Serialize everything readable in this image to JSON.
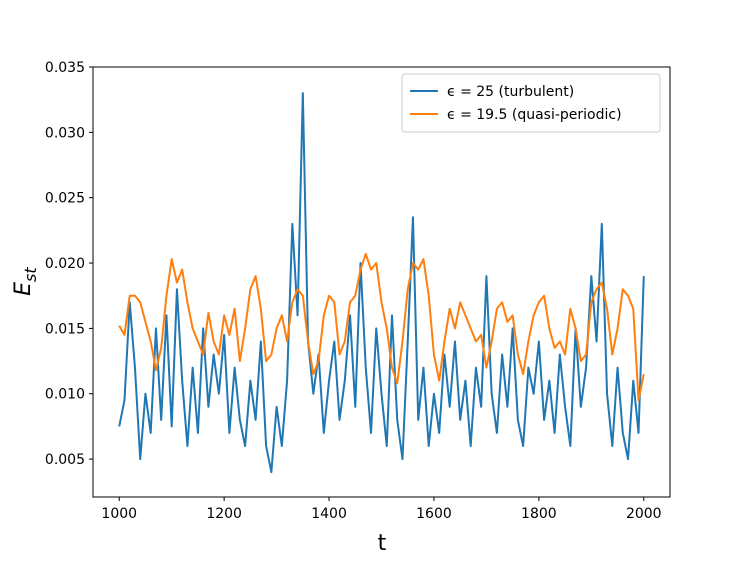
{
  "chart_data": {
    "type": "line",
    "xlabel": "t",
    "ylabel_base": "E",
    "ylabel_subscript": "st",
    "x": [
      1000,
      1010,
      1020,
      1030,
      1040,
      1050,
      1060,
      1070,
      1080,
      1090,
      1100,
      1110,
      1120,
      1130,
      1140,
      1150,
      1160,
      1170,
      1180,
      1190,
      1200,
      1210,
      1220,
      1230,
      1240,
      1250,
      1260,
      1270,
      1280,
      1290,
      1300,
      1310,
      1320,
      1330,
      1340,
      1350,
      1360,
      1370,
      1380,
      1390,
      1400,
      1410,
      1420,
      1430,
      1440,
      1450,
      1460,
      1470,
      1480,
      1490,
      1500,
      1510,
      1520,
      1530,
      1540,
      1550,
      1560,
      1570,
      1580,
      1590,
      1600,
      1610,
      1620,
      1630,
      1640,
      1650,
      1660,
      1670,
      1680,
      1690,
      1700,
      1710,
      1720,
      1730,
      1740,
      1750,
      1760,
      1770,
      1780,
      1790,
      1800,
      1810,
      1820,
      1830,
      1840,
      1850,
      1860,
      1870,
      1880,
      1890,
      1900,
      1910,
      1920,
      1930,
      1940,
      1950,
      1960,
      1970,
      1980,
      1990,
      2000
    ],
    "series": [
      {
        "name": "ϵ = 25 (turbulent)",
        "color": "#1f77b4",
        "values": [
          0.0075,
          0.0095,
          0.017,
          0.012,
          0.005,
          0.01,
          0.007,
          0.015,
          0.008,
          0.016,
          0.0075,
          0.018,
          0.011,
          0.006,
          0.012,
          0.007,
          0.015,
          0.009,
          0.013,
          0.01,
          0.0145,
          0.007,
          0.012,
          0.008,
          0.006,
          0.011,
          0.008,
          0.014,
          0.006,
          0.004,
          0.009,
          0.006,
          0.011,
          0.023,
          0.016,
          0.033,
          0.014,
          0.01,
          0.013,
          0.007,
          0.011,
          0.014,
          0.008,
          0.011,
          0.016,
          0.009,
          0.02,
          0.012,
          0.007,
          0.015,
          0.01,
          0.006,
          0.016,
          0.008,
          0.005,
          0.014,
          0.0235,
          0.008,
          0.012,
          0.006,
          0.01,
          0.007,
          0.013,
          0.009,
          0.014,
          0.008,
          0.011,
          0.006,
          0.012,
          0.009,
          0.019,
          0.01,
          0.007,
          0.013,
          0.009,
          0.015,
          0.008,
          0.006,
          0.012,
          0.01,
          0.014,
          0.008,
          0.011,
          0.007,
          0.013,
          0.009,
          0.006,
          0.015,
          0.009,
          0.012,
          0.019,
          0.014,
          0.023,
          0.01,
          0.006,
          0.012,
          0.007,
          0.005,
          0.011,
          0.007,
          0.019
        ]
      },
      {
        "name": "ϵ = 19.5 (quasi-periodic)",
        "color": "#ff7f0e",
        "values": [
          0.0152,
          0.0145,
          0.0175,
          0.0175,
          0.017,
          0.0155,
          0.014,
          0.0118,
          0.0135,
          0.0175,
          0.0203,
          0.0185,
          0.0195,
          0.017,
          0.015,
          0.014,
          0.013,
          0.0162,
          0.014,
          0.013,
          0.016,
          0.0145,
          0.0165,
          0.0125,
          0.015,
          0.018,
          0.019,
          0.0165,
          0.0125,
          0.013,
          0.015,
          0.016,
          0.014,
          0.017,
          0.018,
          0.0175,
          0.014,
          0.0115,
          0.0125,
          0.016,
          0.0175,
          0.017,
          0.013,
          0.014,
          0.017,
          0.0175,
          0.0195,
          0.0207,
          0.0195,
          0.02,
          0.017,
          0.015,
          0.012,
          0.0108,
          0.014,
          0.018,
          0.02,
          0.0195,
          0.0203,
          0.0175,
          0.013,
          0.011,
          0.014,
          0.0165,
          0.015,
          0.017,
          0.016,
          0.015,
          0.014,
          0.0145,
          0.012,
          0.014,
          0.0165,
          0.017,
          0.0155,
          0.016,
          0.013,
          0.0115,
          0.014,
          0.016,
          0.017,
          0.0175,
          0.015,
          0.0135,
          0.014,
          0.013,
          0.0165,
          0.015,
          0.0125,
          0.013,
          0.017,
          0.018,
          0.0185,
          0.0165,
          0.013,
          0.015,
          0.018,
          0.0175,
          0.0165,
          0.0095,
          0.0115
        ]
      }
    ],
    "xlim": [
      950,
      2050
    ],
    "ylim": [
      0.0021,
      0.035
    ],
    "xticks": [
      1000,
      1200,
      1400,
      1600,
      1800,
      2000
    ],
    "yticks": [
      0.005,
      {
        "value": 0.01,
        "label": "0.010"
      },
      0.015,
      {
        "value": 0.02,
        "label": "0.020"
      },
      0.025,
      {
        "value": 0.03,
        "label": "0.030"
      },
      0.035
    ],
    "legend": "upper right",
    "grid": false
  }
}
